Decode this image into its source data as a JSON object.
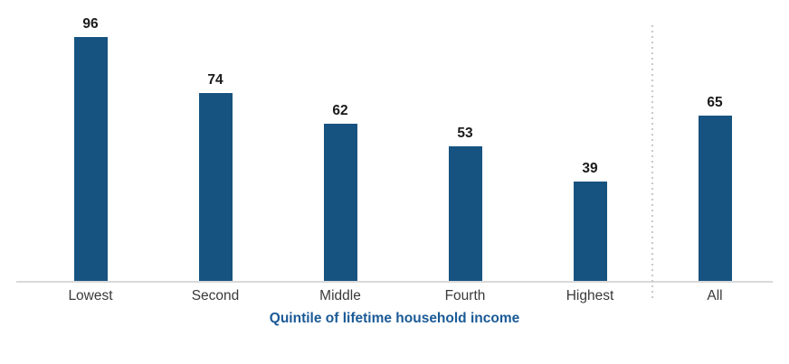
{
  "chart_data": {
    "type": "bar",
    "categories": [
      "Lowest",
      "Second",
      "Middle",
      "Fourth",
      "Highest",
      "All"
    ],
    "values": [
      96,
      74,
      62,
      53,
      39,
      65
    ],
    "title": "",
    "xlabel": "Quintile of lifetime household income",
    "ylabel": "",
    "ylim": [
      0,
      100
    ],
    "grid": false,
    "legend": "none",
    "value_labels_shown": true,
    "divider_after_category": "Highest"
  },
  "colors": {
    "bar": "#165381",
    "axis_line": "#d9d9d9",
    "divider": "#c9c9c9",
    "value_label": "#1a1a1a",
    "category_label": "#3a3a3a",
    "xlabel": "#1a5a96",
    "background": "#ffffff"
  }
}
